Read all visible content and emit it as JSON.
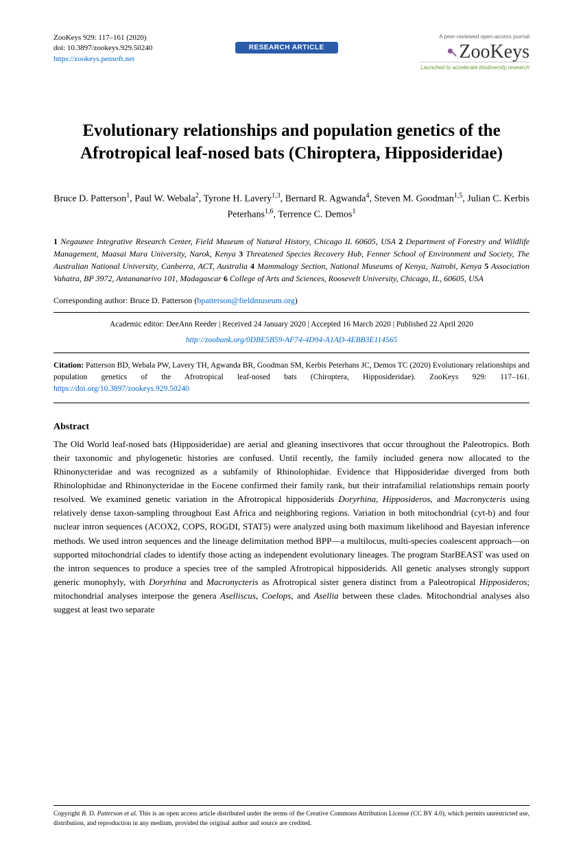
{
  "journal": {
    "ref": "ZooKeys 929: 117–161 (2020)",
    "doi_label": "doi: 10.3897/zookeys.929.50240",
    "site": "https://zookeys.pensoft.net"
  },
  "badge": "RESEARCH ARTICLE",
  "logo": {
    "top": "A peer-reviewed open-access journal",
    "main": "ZooKeys",
    "tag": "Launched to accelerate biodiversity research"
  },
  "title": "Evolutionary relationships and population genetics of the Afrotropical leaf-nosed bats (Chiroptera, Hipposideridae)",
  "authors_html": "Bruce D. Patterson<sup>1</sup>, Paul W. Webala<sup>2</sup>, Tyrone H. Lavery<sup>1,3</sup>, Bernard R. Agwanda<sup>4</sup>, Steven M. Goodman<sup>1,5</sup>, Julian C. Kerbis Peterhans<sup>1,6</sup>, Terrence C. Demos<sup>1</sup>",
  "affiliations": [
    {
      "n": "1",
      "t": "Negaunee Integrative Research Center, Field Museum of Natural History, Chicago IL 60605, USA"
    },
    {
      "n": "2",
      "t": "Department of Forestry and Wildlife Management, Maasai Mara University, Narok, Kenya"
    },
    {
      "n": "3",
      "t": "Threatened Species Recovery Hub, Fenner School of Environment and Society, The Australian National University, Canberra, ACT, Australia"
    },
    {
      "n": "4",
      "t": "Mammalogy Section, National Museums of Kenya, Nairobi, Kenya"
    },
    {
      "n": "5",
      "t": "Association Vahatra, BP 3972, Antananarivo 101, Madagascar"
    },
    {
      "n": "6",
      "t": "College of Arts and Sciences, Roosevelt University, Chicago, IL, 60605, USA"
    }
  ],
  "corresponding": {
    "label": "Corresponding author:",
    "name": "Bruce D. Patterson",
    "email": "bpatterson@fieldmuseum.org"
  },
  "editor_row": "Academic editor: DeeAnn Reeder  |  Received 24 January 2020  |  Accepted 16 March 2020  |  Published 22 April 2020",
  "zoobank": "http://zoobank.org/0DBE5B59-AF74-4D94-A1AD-4EBB3E114565",
  "citation": {
    "label": "Citation:",
    "text": "Patterson BD, Webala PW, Lavery TH, Agwanda BR, Goodman SM, Kerbis Peterhans JC, Demos TC (2020) Evolutionary relationships and population genetics of the Afrotropical leaf-nosed bats (Chiroptera, Hipposideridae). ZooKeys 929: 117–161.",
    "doi": "https://doi.org/10.3897/zookeys.929.50240"
  },
  "abstract": {
    "heading": "Abstract",
    "body_html": "The Old World leaf-nosed bats (Hipposideridae) are aerial and gleaning insectivores that occur throughout the Paleotropics. Both their taxonomic and phylogenetic histories are confused. Until recently, the family included genera now allocated to the Rhinonycteridae and was recognized as a subfamily of Rhinolophidae. Evidence that Hipposideridae diverged from both Rhinolophidae and Rhinonycteridae in the Eocene confirmed their family rank, but their intrafamilial relationships remain poorly resolved. We examined genetic variation in the Afrotropical hipposiderids <em>Doryrhina</em>, <em>Hipposideros</em>, and <em>Macronycteris</em> using relatively dense taxon-sampling throughout East Africa and neighboring regions. Variation in both mitochondrial (cyt-b) and four nuclear intron sequences (ACOX2, COPS, ROGDI, STAT5) were analyzed using both maximum likelihood and Bayesian inference methods. We used intron sequences and the lineage delimitation method BPP—a multilocus, multi-species coalescent approach—on supported mitochondrial clades to identify those acting as independent evolutionary lineages. The program StarBEAST was used on the intron sequences to produce a species tree of the sampled Afrotropical hipposiderids. All genetic analyses strongly support generic monophyly, with <em>Doryrhina</em> and <em>Macronycteris</em> as Afrotropical sister genera distinct from a Paleotropical <em>Hipposideros</em>; mitochondrial analyses interpose the genera <em>Aselliscus</em>, <em>Coelops</em>, and <em>Asellia</em> between these clades. Mitochondrial analyses also suggest at least two separate"
  },
  "copyright": {
    "prefix": "Copyright",
    "holder": "B. D. Patterson et al.",
    "text": "This is an open access article distributed under the terms of the Creative Commons Attribution License (CC BY 4.0), which permits unrestricted use, distribution, and reproduction in any medium, provided the original author and source are credited."
  },
  "colors": {
    "badge_bg": "#2a5caa",
    "link": "#0066cc",
    "logo_green": "#6a9a3a"
  }
}
